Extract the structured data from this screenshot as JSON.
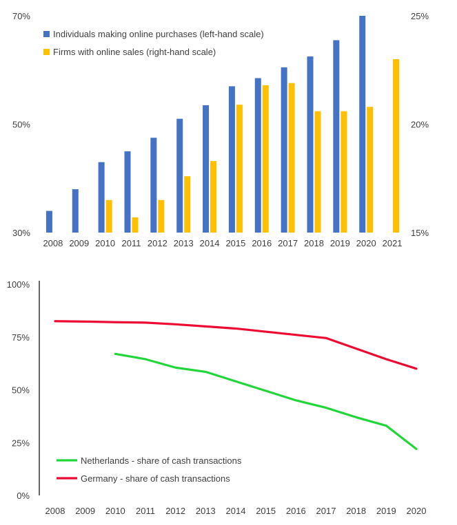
{
  "chart_data": [
    {
      "type": "bar",
      "title": "",
      "categories": [
        "2008",
        "2009",
        "2010",
        "2011",
        "2012",
        "2013",
        "2014",
        "2015",
        "2016",
        "2017",
        "2018",
        "2019",
        "2020",
        "2021"
      ],
      "series": [
        {
          "name": "Individuals making online purchases (left-hand scale)",
          "axis": "left",
          "color": "#4472C4",
          "values": [
            34,
            38,
            43,
            45,
            47.5,
            51,
            53.5,
            57,
            58.5,
            60.5,
            62.5,
            65.5,
            70,
            null
          ]
        },
        {
          "name": "Firms with online sales (right-hand scale)",
          "axis": "right",
          "color": "#FFC000",
          "values": [
            null,
            null,
            16.5,
            15.7,
            16.5,
            17.6,
            18.3,
            20.9,
            21.8,
            21.9,
            20.6,
            20.6,
            20.8,
            23
          ]
        }
      ],
      "y_left": {
        "ylim": [
          30,
          70
        ],
        "ticks": [
          30,
          50,
          70
        ],
        "tick_labels": [
          "30%",
          "50%",
          "70%"
        ]
      },
      "y_right": {
        "ylim": [
          15,
          25
        ],
        "ticks": [
          15,
          20,
          25
        ],
        "tick_labels": [
          "15%",
          "20%",
          "25%"
        ]
      },
      "legend": "top-left",
      "grid": false
    },
    {
      "type": "line",
      "title": "",
      "x": [
        "2008",
        "2009",
        "2010",
        "2011",
        "2012",
        "2013",
        "2014",
        "2015",
        "2016",
        "2017",
        "2018",
        "2019",
        "2020"
      ],
      "series": [
        {
          "name": "Netherlands - share of cash transactions",
          "color": "#22D63A",
          "values": [
            null,
            null,
            67,
            64.5,
            60.5,
            58.5,
            54,
            49.5,
            45,
            41.5,
            37,
            33,
            22
          ]
        },
        {
          "name": "Germany - share of cash transactions",
          "color": "#ED0A32",
          "values": [
            82.5,
            82.3,
            82,
            81.8,
            81,
            80,
            79,
            77.5,
            76,
            74.5,
            69.5,
            64.5,
            60
          ]
        }
      ],
      "ylim": [
        0,
        100
      ],
      "y_ticks": [
        0,
        25,
        50,
        75,
        100
      ],
      "y_tick_labels": [
        "0%",
        "25%",
        "50%",
        "75%",
        "100%"
      ],
      "legend": "bottom-left",
      "grid": false
    }
  ]
}
